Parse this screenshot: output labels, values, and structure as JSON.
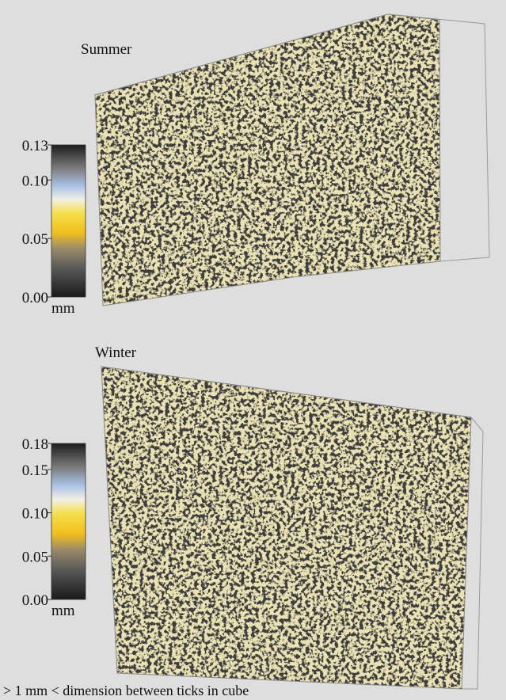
{
  "panels": [
    {
      "title": "Summer",
      "colorbar": {
        "range": [
          0,
          0.13
        ],
        "ticks": [
          {
            "value": 0.13,
            "label": "0.13"
          },
          {
            "value": 0.1,
            "label": "0.10"
          },
          {
            "value": 0.05,
            "label": "0.05"
          },
          {
            "value": 0,
            "label": "0.00"
          }
        ],
        "unit": "mm"
      }
    },
    {
      "title": "Winter",
      "colorbar": {
        "range": [
          0,
          0.18
        ],
        "ticks": [
          {
            "value": 0.18,
            "label": "0.18"
          },
          {
            "value": 0.15,
            "label": "0.15"
          },
          {
            "value": 0.1,
            "label": "0.10"
          },
          {
            "value": 0.05,
            "label": "0.05"
          },
          {
            "value": 0,
            "label": "0.00"
          }
        ],
        "unit": "mm"
      }
    }
  ],
  "caption": "> 1 mm < dimension between ticks in cube"
}
